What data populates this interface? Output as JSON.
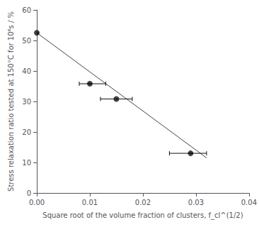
{
  "chart_data": {
    "type": "scatter",
    "xlabel": "Square root of the volume fraction of clusters, f_cl^(1/2)",
    "ylabel": "Stress relaxation ratio tested at 150°C for 10⁶s / %",
    "series": [
      {
        "type": "line",
        "color": "#444444",
        "line_style": "solid",
        "x": [
          0.0,
          0.032
        ],
        "values": [
          52.5,
          11.5
        ]
      },
      {
        "type": "scatter",
        "color": "#111111",
        "marker": "circle",
        "x": [
          0.0,
          0.01,
          0.015,
          0.029
        ],
        "values": [
          52.5,
          35.8,
          30.8,
          13.0
        ],
        "x_err_lo": [
          0.0,
          0.002,
          0.003,
          0.004
        ],
        "x_err_hi": [
          0.0,
          0.003,
          0.003,
          0.003
        ],
        "y_err": [
          0.0,
          0.0,
          0.0,
          0.0
        ]
      }
    ],
    "xlim": [
      0,
      0.04
    ],
    "ylim": [
      0,
      60
    ],
    "xticks": [
      {
        "value": 0,
        "label": "0.00"
      },
      0.01,
      0.02,
      0.03,
      0.04
    ],
    "yticks": [
      0,
      10,
      20,
      30,
      40,
      50,
      60
    ],
    "grid": false
  }
}
